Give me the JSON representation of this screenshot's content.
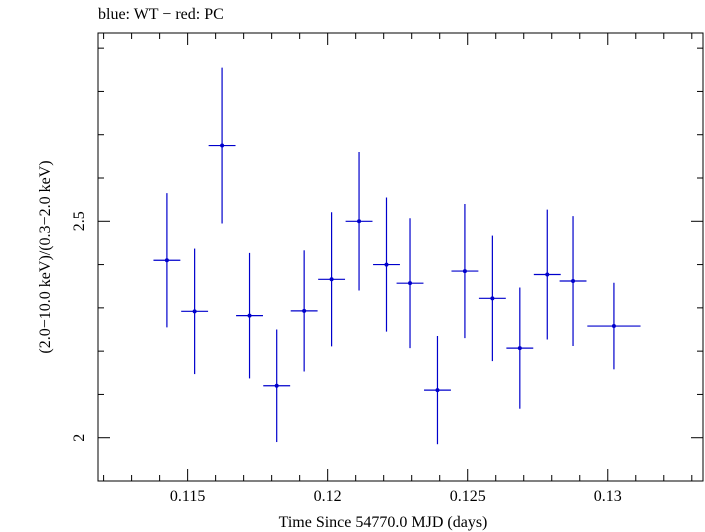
{
  "chart_data": {
    "type": "scatter",
    "title": "blue: WT − red: PC",
    "xlabel": "Time Since 54770.0 MJD (days)",
    "ylabel": "(2.0−10.0 keV)/(0.3−2.0 keV)",
    "xlim": [
      0.1118,
      0.1334
    ],
    "ylim": [
      1.9,
      2.935
    ],
    "xticks": [
      {
        "value": 0.115,
        "label": "0.115"
      },
      {
        "value": 0.12,
        "label": "0.12"
      },
      {
        "value": 0.125,
        "label": "0.125"
      },
      {
        "value": 0.13,
        "label": "0.13"
      }
    ],
    "yticks": [
      {
        "value": 2.0,
        "label": "2"
      },
      {
        "value": 2.5,
        "label": "2.5"
      }
    ],
    "grid": false,
    "series": [
      {
        "color": "#0000cc",
        "points": [
          {
            "x": 0.11426,
            "xerr": 0.00048,
            "y": 2.41,
            "yerr": 0.155
          },
          {
            "x": 0.11525,
            "xerr": 0.00048,
            "y": 2.292,
            "yerr": 0.145
          },
          {
            "x": 0.11623,
            "xerr": 0.00048,
            "y": 2.675,
            "yerr": 0.18
          },
          {
            "x": 0.11721,
            "xerr": 0.00048,
            "y": 2.282,
            "yerr": 0.145
          },
          {
            "x": 0.11818,
            "xerr": 0.00048,
            "y": 2.12,
            "yerr": 0.13
          },
          {
            "x": 0.11916,
            "xerr": 0.00048,
            "y": 2.293,
            "yerr": 0.14
          },
          {
            "x": 0.12014,
            "xerr": 0.00048,
            "y": 2.366,
            "yerr": 0.155
          },
          {
            "x": 0.12112,
            "xerr": 0.00048,
            "y": 2.5,
            "yerr": 0.16
          },
          {
            "x": 0.1221,
            "xerr": 0.00048,
            "y": 2.4,
            "yerr": 0.155
          },
          {
            "x": 0.12294,
            "xerr": 0.00048,
            "y": 2.357,
            "yerr": 0.15
          },
          {
            "x": 0.12392,
            "xerr": 0.00048,
            "y": 2.11,
            "yerr": 0.125
          },
          {
            "x": 0.1249,
            "xerr": 0.00048,
            "y": 2.385,
            "yerr": 0.155
          },
          {
            "x": 0.12588,
            "xerr": 0.00048,
            "y": 2.322,
            "yerr": 0.145
          },
          {
            "x": 0.12686,
            "xerr": 0.00048,
            "y": 2.207,
            "yerr": 0.14
          },
          {
            "x": 0.12784,
            "xerr": 0.00048,
            "y": 2.377,
            "yerr": 0.15
          },
          {
            "x": 0.12876,
            "xerr": 0.00048,
            "y": 2.362,
            "yerr": 0.15
          },
          {
            "x": 0.13022,
            "xerr": 0.00095,
            "y": 2.258,
            "yerr": 0.1
          }
        ]
      }
    ]
  }
}
